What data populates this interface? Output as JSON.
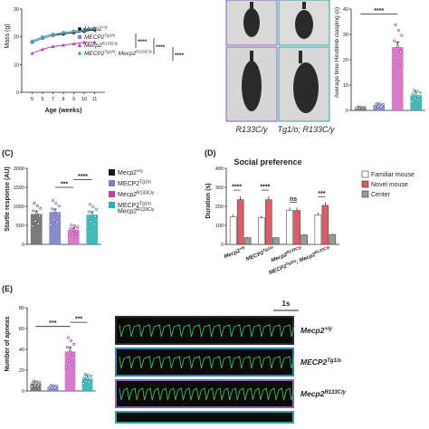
{
  "panels": {
    "mass": {
      "ylabel": "Mass (g)",
      "xlabel": "Age (weeks)",
      "legend": [
        {
          "main": "Mecp2",
          "sup": "+/y",
          "color": "#1a1a1a",
          "marker": "circle"
        },
        {
          "main": "MECP2",
          "sup": "Tg1/o",
          "color": "#7b7fc4",
          "marker": "square"
        },
        {
          "main": "Mecp2",
          "sup": "R133C/y",
          "color": "#c23db2",
          "marker": "triangle"
        },
        {
          "main": "MECP2",
          "sup": "Tg1/o",
          "main2": "; Mecp2",
          "sup2": "R133C/y",
          "color": "#2db3b0",
          "marker": "diamond"
        }
      ],
      "sig": [
        "****",
        "****",
        "****"
      ]
    },
    "photos": {
      "labels": [
        "R133C/y",
        "Tg1/o; R133C/y"
      ],
      "label_colors": [
        "#8c5fb8",
        "#2aa5a3"
      ]
    },
    "clasping": {
      "ylabel": "Average time Hindlimb clasping (s)",
      "sig": "****"
    },
    "startle": {
      "letter": "(C)",
      "ylabel": "Startle response (AU)",
      "sig": [
        "***",
        "****"
      ],
      "legend": [
        {
          "main": "Mecp2",
          "sup": "+/y",
          "color": "#1a1a1a"
        },
        {
          "main": "MECP2",
          "sup": "Tg1/o",
          "color": "#7b7fc4"
        },
        {
          "main": "Mecp2",
          "sup": "R133C/y",
          "color": "#c23db2"
        },
        {
          "main": "MECP2",
          "sup": "Tg1/o",
          "main2": "Mecp2",
          "sup2": "R133C/y",
          "color": "#2db3b0"
        }
      ]
    },
    "social": {
      "letter": "(D)",
      "title": "Social preference",
      "ylabel": "Duration (s)",
      "groups": [
        {
          "main": "Mecp2",
          "sup": "+/y"
        },
        {
          "main": "MECP2",
          "sup": "Tg1/o"
        },
        {
          "main": "Mecp2",
          "sup": "R133C/y"
        },
        {
          "main": "MECP2",
          "sup": "Tg1/o",
          "main2": "; Mecp2",
          "sup2": "R133C/y"
        }
      ],
      "sig": [
        "****",
        "****",
        "ns",
        "***"
      ],
      "legend": [
        {
          "label": "Familiar mouse",
          "color": "#ffffff"
        },
        {
          "label": "Novel mouse",
          "color": "#e05a68"
        },
        {
          "label": "Center",
          "color": "#9a9a9a"
        }
      ]
    },
    "apnea": {
      "letter": "(E)",
      "ylabel": "Number of apneas",
      "sig": [
        "***",
        "***"
      ]
    },
    "traces": {
      "scale": "1s",
      "rows": [
        {
          "main": "Mecp2",
          "sup": "+/y",
          "color": "#222222",
          "border": "#2a2a2a"
        },
        {
          "main": "MECP2",
          "sup": "Tg1/o",
          "color": "#2f7fb8",
          "border": "#2f7fb8"
        },
        {
          "main": "Mecp2",
          "sup": "R133C/y",
          "color": "#8c5fb8",
          "border": "#8c5fb8"
        },
        {
          "main": "",
          "sup": "",
          "color": "#2aa5a3",
          "border": "#2aa5a3"
        }
      ]
    }
  },
  "chart_data": [
    {
      "type": "line",
      "x": [
        5,
        6,
        7,
        8,
        9,
        10,
        11
      ],
      "xlim": [
        4,
        12
      ],
      "ylim": [
        0,
        30
      ],
      "yticks": [
        0,
        10,
        20,
        30
      ],
      "series": [
        {
          "name": "Mecp2+/y",
          "values": [
            18,
            19.5,
            20.5,
            21,
            21.5,
            22,
            22.5
          ]
        },
        {
          "name": "MECP2Tg1/o",
          "values": [
            18,
            19.5,
            20.5,
            21.5,
            22,
            22.5,
            23
          ]
        },
        {
          "name": "Mecp2R133C/y",
          "values": [
            14,
            15.5,
            16.5,
            17,
            17.5,
            18,
            18
          ]
        },
        {
          "name": "MECP2Tg1/o; Mecp2R133C/y",
          "values": [
            18.5,
            20,
            21,
            21.5,
            22,
            22.5,
            23
          ]
        }
      ]
    },
    {
      "type": "bar",
      "categories": [
        "Mecp2+/y",
        "MECP2Tg1/o",
        "Mecp2R133C/y",
        "MECP2Tg1/o; Mecp2R133C/y"
      ],
      "values": [
        1,
        2,
        25,
        6
      ],
      "errors": [
        0.5,
        0.8,
        2,
        1.5
      ],
      "ylim": [
        0,
        40
      ],
      "yticks": [
        0,
        10,
        20,
        30,
        40
      ]
    },
    {
      "type": "bar",
      "categories": [
        "Mecp2+/y",
        "MECP2Tg1/o",
        "Mecp2R133C/y",
        "MECP2Tg1/o; Mecp2R133C/y"
      ],
      "values": [
        800,
        850,
        380,
        780
      ],
      "errors": [
        80,
        80,
        50,
        80
      ],
      "ylim": [
        0,
        2000
      ],
      "yticks": [
        0,
        500,
        1000,
        1500,
        2000
      ]
    },
    {
      "type": "bar",
      "categories": [
        "Mecp2+/y",
        "MECP2Tg1/o",
        "Mecp2R133C/y",
        "MECP2Tg1/o; Mecp2R133C/y"
      ],
      "series": [
        {
          "name": "Familiar mouse",
          "values": [
            145,
            140,
            180,
            155
          ]
        },
        {
          "name": "Novel mouse",
          "values": [
            235,
            235,
            178,
            205
          ]
        },
        {
          "name": "Center",
          "values": [
            35,
            35,
            50,
            52
          ]
        }
      ],
      "ylim": [
        0,
        400
      ],
      "yticks": [
        0,
        100,
        200,
        300,
        400
      ]
    },
    {
      "type": "bar",
      "categories": [
        "Mecp2+/y",
        "MECP2Tg1/o",
        "Mecp2R133C/y",
        "MECP2Tg1/o; Mecp2R133C/y"
      ],
      "values": [
        7,
        4,
        38,
        12
      ],
      "errors": [
        2,
        1.5,
        4,
        3
      ],
      "ylim": [
        0,
        80
      ],
      "yticks": [
        0,
        20,
        40,
        60,
        80
      ]
    }
  ]
}
